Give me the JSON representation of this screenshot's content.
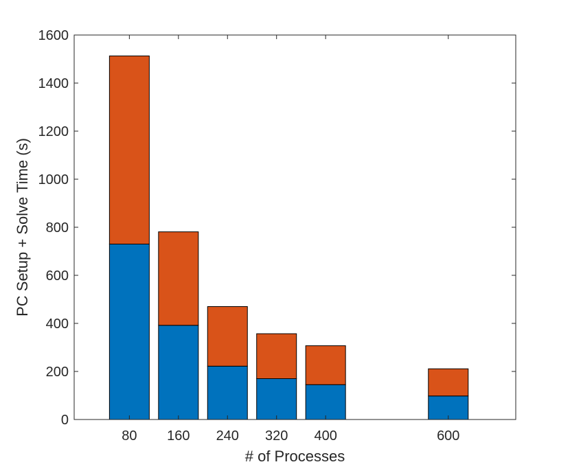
{
  "chart_data": {
    "type": "bar",
    "stacked": true,
    "x": [
      80,
      160,
      240,
      320,
      400,
      600
    ],
    "series": [
      {
        "values": [
          730,
          392,
          222,
          170,
          145,
          98
        ],
        "color": "#0072BD"
      },
      {
        "values": [
          783,
          389,
          248,
          187,
          162,
          113
        ],
        "color": "#D95319"
      }
    ],
    "title": "",
    "xlabel": "# of Processes",
    "ylabel": "PC Setup + Solve Time (s)",
    "xlim": [
      -10,
      710
    ],
    "ylim": [
      0,
      1600
    ],
    "yticks": [
      0,
      200,
      400,
      600,
      800,
      1000,
      1200,
      1400,
      1600
    ],
    "xticks": [
      80,
      160,
      240,
      320,
      400,
      600
    ],
    "grid": false,
    "legend": "none"
  }
}
